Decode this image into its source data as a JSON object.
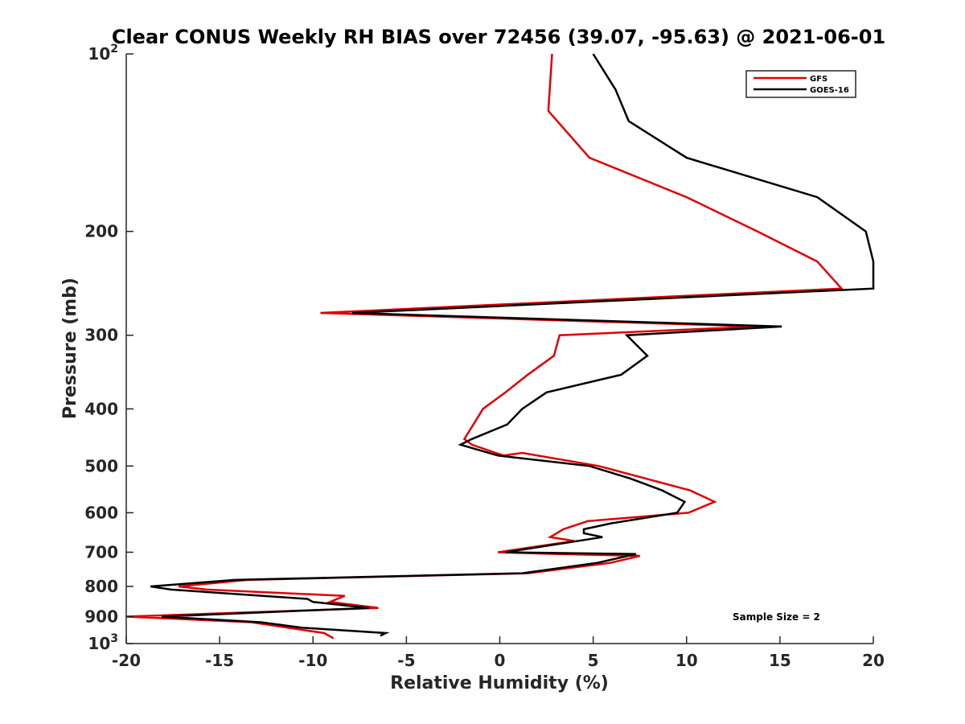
{
  "chart_data": {
    "type": "line",
    "title": "Clear CONUS Weekly RH BIAS over 72456 (39.07, -95.63) @ 2021-06-01",
    "xlabel": "Relative Humidity (%)",
    "ylabel": "Pressure (mb)",
    "xlim": [
      -20,
      20
    ],
    "ylim": [
      100,
      1000
    ],
    "yscale": "log",
    "y_reversed": true,
    "x_ticks": [
      "-20",
      "-15",
      "-10",
      "-5",
      "0",
      "5",
      "10",
      "15",
      "20"
    ],
    "y_ticks": [
      {
        "value": 100,
        "base": "10",
        "exp": "2"
      },
      {
        "value": 200,
        "label": "200"
      },
      {
        "value": 300,
        "label": "300"
      },
      {
        "value": 400,
        "label": "400"
      },
      {
        "value": 500,
        "label": "500"
      },
      {
        "value": 600,
        "label": "600"
      },
      {
        "value": 700,
        "label": "700"
      },
      {
        "value": 800,
        "label": "800"
      },
      {
        "value": 900,
        "label": "900"
      },
      {
        "value": 1000,
        "base": "10",
        "exp": "3"
      }
    ],
    "legend_position": "top-right",
    "annotation": "Sample Size = 2",
    "series": [
      {
        "name": "GFS",
        "color": "#e00000",
        "points": [
          {
            "x": 2.8,
            "p": 100
          },
          {
            "x": 2.6,
            "p": 125
          },
          {
            "x": 4.8,
            "p": 150
          },
          {
            "x": 10.0,
            "p": 175
          },
          {
            "x": 13.8,
            "p": 200
          },
          {
            "x": 17.0,
            "p": 225
          },
          {
            "x": 18.3,
            "p": 250
          },
          {
            "x": -9.6,
            "p": 275
          },
          {
            "x": 13.8,
            "p": 290
          },
          {
            "x": 3.2,
            "p": 300
          },
          {
            "x": 2.9,
            "p": 325
          },
          {
            "x": 1.5,
            "p": 350
          },
          {
            "x": 0.3,
            "p": 375
          },
          {
            "x": -0.9,
            "p": 400
          },
          {
            "x": -1.9,
            "p": 450
          },
          {
            "x": -1.5,
            "p": 460
          },
          {
            "x": 0.2,
            "p": 480
          },
          {
            "x": 1.2,
            "p": 475
          },
          {
            "x": 5.3,
            "p": 500
          },
          {
            "x": 10.2,
            "p": 550
          },
          {
            "x": 11.5,
            "p": 575
          },
          {
            "x": 10.1,
            "p": 600
          },
          {
            "x": 4.7,
            "p": 620
          },
          {
            "x": 3.4,
            "p": 640
          },
          {
            "x": 2.7,
            "p": 660
          },
          {
            "x": 4.0,
            "p": 670
          },
          {
            "x": -0.1,
            "p": 700
          },
          {
            "x": 3.2,
            "p": 705
          },
          {
            "x": 7.5,
            "p": 710
          },
          {
            "x": 5.9,
            "p": 730
          },
          {
            "x": 1.5,
            "p": 760
          },
          {
            "x": -13.5,
            "p": 780
          },
          {
            "x": -17.2,
            "p": 800
          },
          {
            "x": -15.7,
            "p": 810
          },
          {
            "x": -8.3,
            "p": 830
          },
          {
            "x": -9.1,
            "p": 850
          },
          {
            "x": -6.5,
            "p": 870
          },
          {
            "x": -20.0,
            "p": 900
          },
          {
            "x": -13.3,
            "p": 920
          },
          {
            "x": -9.4,
            "p": 960
          },
          {
            "x": -8.9,
            "p": 980
          }
        ]
      },
      {
        "name": "GOES-16",
        "color": "#000000",
        "points": [
          {
            "x": 5.0,
            "p": 100
          },
          {
            "x": 6.2,
            "p": 115
          },
          {
            "x": 6.9,
            "p": 130
          },
          {
            "x": 10.0,
            "p": 150
          },
          {
            "x": 17.0,
            "p": 175
          },
          {
            "x": 19.6,
            "p": 200
          },
          {
            "x": 20.0,
            "p": 225
          },
          {
            "x": 20.0,
            "p": 250
          },
          {
            "x": -7.9,
            "p": 275
          },
          {
            "x": 15.1,
            "p": 290
          },
          {
            "x": 6.8,
            "p": 300
          },
          {
            "x": 7.9,
            "p": 325
          },
          {
            "x": 6.5,
            "p": 350
          },
          {
            "x": 2.5,
            "p": 375
          },
          {
            "x": 1.2,
            "p": 400
          },
          {
            "x": 0.4,
            "p": 425
          },
          {
            "x": -1.5,
            "p": 450
          },
          {
            "x": -2.1,
            "p": 460
          },
          {
            "x": -0.1,
            "p": 480
          },
          {
            "x": 4.8,
            "p": 500
          },
          {
            "x": 7.0,
            "p": 525
          },
          {
            "x": 8.7,
            "p": 550
          },
          {
            "x": 9.9,
            "p": 575
          },
          {
            "x": 9.5,
            "p": 600
          },
          {
            "x": 6.0,
            "p": 625
          },
          {
            "x": 4.5,
            "p": 640
          },
          {
            "x": 4.5,
            "p": 650
          },
          {
            "x": 5.5,
            "p": 660
          },
          {
            "x": 0.3,
            "p": 700
          },
          {
            "x": 7.3,
            "p": 705
          },
          {
            "x": 5.2,
            "p": 730
          },
          {
            "x": 1.2,
            "p": 760
          },
          {
            "x": -14.2,
            "p": 780
          },
          {
            "x": -18.7,
            "p": 800
          },
          {
            "x": -17.6,
            "p": 810
          },
          {
            "x": -10.3,
            "p": 840
          },
          {
            "x": -10.0,
            "p": 850
          },
          {
            "x": -7.0,
            "p": 870
          },
          {
            "x": -18.1,
            "p": 900
          },
          {
            "x": -12.8,
            "p": 920
          },
          {
            "x": -10.6,
            "p": 940
          },
          {
            "x": -6.1,
            "p": 960
          },
          {
            "x": -6.4,
            "p": 970
          }
        ]
      }
    ]
  }
}
